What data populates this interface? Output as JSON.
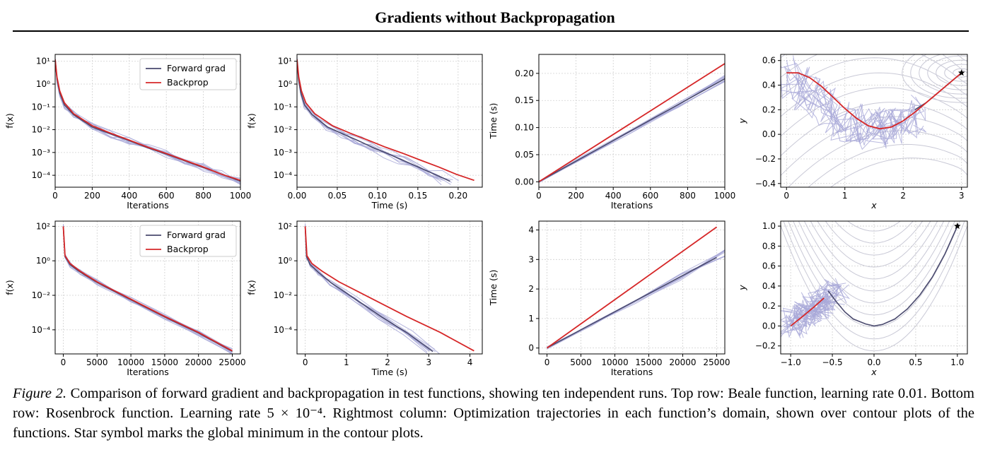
{
  "header": {
    "title": "Gradients without Backpropagation"
  },
  "caption": {
    "label": "Figure 2.",
    "text": "Comparison of forward gradient and backpropagation in test functions, showing ten independent runs. Top row: Beale function, learning rate 0.01. Bottom row: Rosenbrock function. Learning rate 5 × 10⁻⁴. Rightmost column: Optimization trajectories in each function’s domain, shown over contour plots of the functions. Star symbol marks the global minimum in the contour plots."
  },
  "colors": {
    "forward": "#4a4a6e",
    "forward_faint": "#a9a9d8",
    "backprop": "#d62728",
    "contour": "#c9c9d6",
    "grid": "#d0d0d0"
  },
  "chart_data": [
    {
      "type": "line",
      "row": 0,
      "col": 0,
      "yscale": "log",
      "xlabel": "Iterations",
      "ylabel": "f(x)",
      "xlim": [
        0,
        1000
      ],
      "ylim": [
        3e-05,
        20
      ],
      "xticks": [
        0,
        200,
        400,
        600,
        800,
        1000
      ],
      "yticks": [
        10,
        1,
        0.1,
        0.01,
        0.001,
        0.0001
      ],
      "yticklabels": [
        "10¹",
        "10⁰",
        "10⁻¹",
        "10⁻²",
        "10⁻³",
        "10⁻⁴"
      ],
      "legend": [
        "Forward grad",
        "Backprop"
      ],
      "legend_position": "top-right",
      "series": [
        {
          "name": "Backprop",
          "x": [
            0,
            10,
            25,
            50,
            100,
            200,
            300,
            400,
            500,
            600,
            700,
            800,
            900,
            1000
          ],
          "y": [
            12,
            2,
            0.5,
            0.15,
            0.05,
            0.015,
            0.007,
            0.0035,
            0.0017,
            0.0009,
            0.00045,
            0.00023,
            0.00011,
            6e-05
          ]
        },
        {
          "name": "Forward grad",
          "x": [
            0,
            10,
            25,
            50,
            100,
            200,
            300,
            400,
            500,
            600,
            700,
            800,
            900,
            1000
          ],
          "y": [
            12,
            1.6,
            0.4,
            0.12,
            0.045,
            0.013,
            0.0065,
            0.0033,
            0.0016,
            0.00085,
            0.00043,
            0.00022,
            0.00011,
            5.5e-05
          ]
        }
      ]
    },
    {
      "type": "line",
      "row": 0,
      "col": 1,
      "yscale": "log",
      "xlabel": "Time (s)",
      "ylabel": "f(x)",
      "xlim": [
        0,
        0.23
      ],
      "ylim": [
        3e-05,
        20
      ],
      "xticks": [
        0,
        0.05,
        0.1,
        0.15,
        0.2
      ],
      "xticklabels": [
        "0.00",
        "0.05",
        "0.10",
        "0.15",
        "0.20"
      ],
      "yticks": [
        10,
        1,
        0.1,
        0.01,
        0.001,
        0.0001
      ],
      "yticklabels": [
        "10¹",
        "10⁰",
        "10⁻¹",
        "10⁻²",
        "10⁻³",
        "10⁻⁴"
      ],
      "series": [
        {
          "name": "Backprop",
          "x": [
            0,
            0.0022,
            0.0055,
            0.011,
            0.022,
            0.044,
            0.066,
            0.088,
            0.11,
            0.132,
            0.154,
            0.176,
            0.198,
            0.22
          ],
          "y": [
            12,
            2,
            0.5,
            0.15,
            0.05,
            0.015,
            0.007,
            0.0035,
            0.0017,
            0.0009,
            0.00045,
            0.00023,
            0.00011,
            6e-05
          ]
        },
        {
          "name": "Forward grad",
          "x": [
            0,
            0.0019,
            0.0048,
            0.0095,
            0.019,
            0.038,
            0.057,
            0.076,
            0.095,
            0.114,
            0.133,
            0.152,
            0.171,
            0.19
          ],
          "y": [
            12,
            1.6,
            0.4,
            0.12,
            0.045,
            0.013,
            0.0065,
            0.0033,
            0.0016,
            0.00085,
            0.00043,
            0.00022,
            0.00011,
            5.5e-05
          ]
        }
      ]
    },
    {
      "type": "line",
      "row": 0,
      "col": 2,
      "yscale": "linear",
      "xlabel": "Iterations",
      "ylabel": "Time (s)",
      "xlim": [
        0,
        1000
      ],
      "ylim": [
        -0.01,
        0.235
      ],
      "xticks": [
        0,
        200,
        400,
        600,
        800,
        1000
      ],
      "yticks": [
        0,
        0.05,
        0.1,
        0.15,
        0.2
      ],
      "yticklabels": [
        "0.00",
        "0.05",
        "0.10",
        "0.15",
        "0.20"
      ],
      "series": [
        {
          "name": "Backprop",
          "x": [
            0,
            1000
          ],
          "y": [
            0,
            0.218
          ]
        },
        {
          "name": "Forward grad",
          "x": [
            0,
            1000
          ],
          "y": [
            0,
            0.19
          ]
        }
      ]
    },
    {
      "type": "contour-trajectory",
      "row": 0,
      "col": 3,
      "xlabel": "x",
      "ylabel": "y",
      "xlim": [
        -0.1,
        3.1
      ],
      "ylim": [
        -0.43,
        0.65
      ],
      "xticks": [
        0,
        1,
        2,
        3
      ],
      "yticks": [
        -0.4,
        -0.2,
        0,
        0.2,
        0.4,
        0.6
      ],
      "yticklabels": [
        "−0.4",
        "−0.2",
        "0.0",
        "0.2",
        "0.4",
        "0.6"
      ],
      "minimum": [
        3,
        0.5
      ],
      "series": [
        {
          "name": "Backprop",
          "x": [
            0,
            0.2,
            0.4,
            0.6,
            0.8,
            1.0,
            1.2,
            1.4,
            1.6,
            1.8,
            2.0,
            2.2,
            2.4,
            2.6,
            2.8,
            3.0
          ],
          "y": [
            0.5,
            0.5,
            0.46,
            0.39,
            0.3,
            0.21,
            0.13,
            0.07,
            0.045,
            0.06,
            0.11,
            0.18,
            0.26,
            0.34,
            0.42,
            0.5
          ]
        },
        {
          "name": "Forward grad",
          "x": [
            2.2,
            2.4,
            2.6,
            2.8,
            3.0
          ],
          "y": [
            0.2,
            0.26,
            0.34,
            0.42,
            0.5
          ]
        }
      ]
    },
    {
      "type": "line",
      "row": 1,
      "col": 0,
      "yscale": "log",
      "xlabel": "Iterations",
      "ylabel": "f(x)",
      "xlim": [
        -1200,
        26200
      ],
      "ylim": [
        4e-06,
        200
      ],
      "xticks": [
        0,
        5000,
        10000,
        15000,
        20000,
        25000
      ],
      "yticks": [
        100,
        1,
        0.01,
        0.0001
      ],
      "yticklabels": [
        "10²",
        "10⁰",
        "10⁻²",
        "10⁻⁴"
      ],
      "legend": [
        "Forward grad",
        "Backprop"
      ],
      "legend_position": "top-right",
      "series": [
        {
          "name": "Backprop",
          "x": [
            0,
            250,
            1000,
            2500,
            5000,
            10000,
            15000,
            20000,
            25000
          ],
          "y": [
            100,
            2,
            0.7,
            0.25,
            0.06,
            0.006,
            0.0006,
            7e-05,
            6e-06
          ]
        },
        {
          "name": "Forward grad",
          "x": [
            0,
            250,
            1000,
            2500,
            5000,
            10000,
            15000,
            20000,
            25000
          ],
          "y": [
            100,
            1.8,
            0.6,
            0.22,
            0.055,
            0.0055,
            0.00055,
            6.5e-05,
            5.5e-06
          ]
        }
      ]
    },
    {
      "type": "line",
      "row": 1,
      "col": 1,
      "yscale": "log",
      "xlabel": "Time (s)",
      "ylabel": "f(x)",
      "xlim": [
        -0.2,
        4.3
      ],
      "ylim": [
        4e-06,
        200
      ],
      "xticks": [
        0,
        1,
        2,
        3,
        4
      ],
      "yticks": [
        100,
        1,
        0.01,
        0.0001
      ],
      "yticklabels": [
        "10²",
        "10⁰",
        "10⁻²",
        "10⁻⁴"
      ],
      "series": [
        {
          "name": "Backprop",
          "x": [
            0,
            0.04,
            0.16,
            0.41,
            0.82,
            1.64,
            2.46,
            3.28,
            4.1
          ],
          "y": [
            100,
            2,
            0.7,
            0.25,
            0.06,
            0.006,
            0.0006,
            7e-05,
            6e-06
          ]
        },
        {
          "name": "Forward grad",
          "x": [
            0,
            0.03,
            0.12,
            0.31,
            0.62,
            1.24,
            1.86,
            2.48,
            3.1
          ],
          "y": [
            100,
            1.8,
            0.6,
            0.22,
            0.055,
            0.0055,
            0.00055,
            6.5e-05,
            5.5e-06
          ]
        }
      ]
    },
    {
      "type": "line",
      "row": 1,
      "col": 2,
      "yscale": "linear",
      "xlabel": "Iterations",
      "ylabel": "Time (s)",
      "xlim": [
        -1200,
        26200
      ],
      "ylim": [
        -0.2,
        4.3
      ],
      "xticks": [
        0,
        5000,
        10000,
        15000,
        20000,
        25000
      ],
      "yticks": [
        0,
        1,
        2,
        3,
        4
      ],
      "series": [
        {
          "name": "Backprop",
          "x": [
            0,
            25000
          ],
          "y": [
            0,
            4.1
          ]
        },
        {
          "name": "Forward grad",
          "x": [
            0,
            25000
          ],
          "y": [
            0,
            3.07
          ]
        }
      ]
    },
    {
      "type": "contour-trajectory",
      "row": 1,
      "col": 3,
      "xlabel": "x",
      "ylabel": "y",
      "xlim": [
        -1.12,
        1.12
      ],
      "ylim": [
        -0.28,
        1.05
      ],
      "xticks": [
        -1,
        -0.5,
        0,
        0.5,
        1
      ],
      "xticklabels": [
        "−1.0",
        "−0.5",
        "0.0",
        "0.5",
        "1.0"
      ],
      "yticks": [
        -0.2,
        0,
        0.2,
        0.4,
        0.6,
        0.8,
        1.0
      ],
      "yticklabels": [
        "−0.2",
        "0.0",
        "0.2",
        "0.4",
        "0.6",
        "0.8",
        "1.0"
      ],
      "minimum": [
        1,
        1
      ],
      "series": [
        {
          "name": "Backprop",
          "x": [
            -1.0,
            -0.85,
            -0.72,
            -0.6
          ],
          "y": [
            0.0,
            0.1,
            0.19,
            0.28
          ]
        },
        {
          "name": "Forward grad",
          "x": [
            -0.55,
            -0.45,
            -0.35,
            -0.25,
            -0.1,
            0.0,
            0.1,
            0.25,
            0.4,
            0.55,
            0.7,
            0.85,
            1.0
          ],
          "y": [
            0.35,
            0.24,
            0.14,
            0.07,
            0.02,
            0.0,
            0.015,
            0.07,
            0.17,
            0.31,
            0.49,
            0.72,
            1.0
          ]
        }
      ]
    }
  ]
}
